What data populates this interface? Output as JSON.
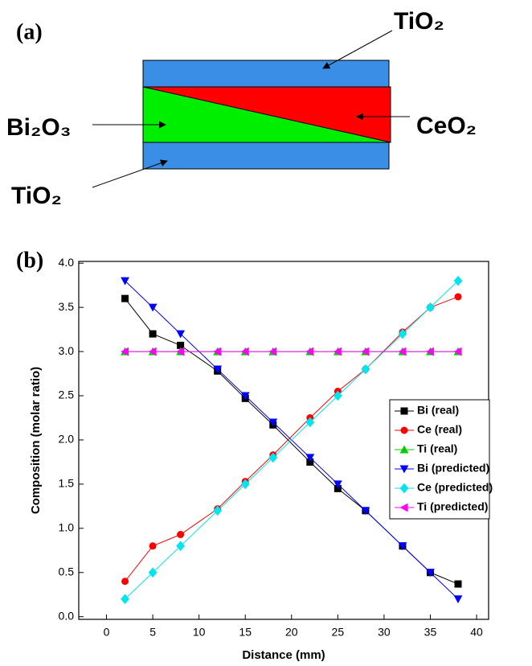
{
  "diagram": {
    "panel_label": "(a)",
    "top_label": "TiO₂",
    "left_label": "Bi₂O₃",
    "right_label": "CeO₂",
    "bottom_label": "TiO₂"
  },
  "chart_data": {
    "type": "line",
    "panel_label": "(b)",
    "x_label": "Distance (mm)",
    "y_label": "Composition (molar ratio)",
    "x": [
      2,
      5,
      8,
      12,
      15,
      18,
      22,
      25,
      28,
      32,
      35,
      38
    ],
    "xlim": [
      -3,
      41.3
    ],
    "xticks": [
      0,
      5,
      10,
      15,
      20,
      25,
      30,
      35,
      40
    ],
    "ylim": [
      -0.03,
      4.02
    ],
    "yticks": [
      {
        "value": 0,
        "label": "0.0"
      },
      0.5,
      {
        "value": 1,
        "label": "1.0"
      },
      1.5,
      {
        "value": 2,
        "label": "2.0"
      },
      2.5,
      {
        "value": 3,
        "label": "3.0"
      },
      3.5,
      {
        "value": 4,
        "label": "4.0"
      }
    ],
    "legend": "right",
    "series": [
      {
        "name": "Bi (real)",
        "color": "#000000",
        "marker": "square",
        "values": [
          3.6,
          3.2,
          3.07,
          2.78,
          2.47,
          2.17,
          1.75,
          1.45,
          1.2,
          0.8,
          0.5,
          0.37
        ]
      },
      {
        "name": "Ce (real)",
        "color": "#ff0000",
        "marker": "circle",
        "values": [
          0.4,
          0.8,
          0.93,
          1.22,
          1.53,
          1.83,
          2.25,
          2.55,
          2.8,
          3.22,
          3.5,
          3.62
        ]
      },
      {
        "name": "Ti (real)",
        "color": "#00cc00",
        "marker": "triangle-up",
        "values": [
          3,
          3,
          3,
          3,
          3,
          3,
          3,
          3,
          3,
          3,
          3,
          3
        ]
      },
      {
        "name": "Bi (predicted)",
        "color": "#0000ff",
        "marker": "triangle-down",
        "values": [
          3.8,
          3.5,
          3.2,
          2.8,
          2.5,
          2.2,
          1.8,
          1.5,
          1.2,
          0.8,
          0.5,
          0.2
        ]
      },
      {
        "name": "Ce (predicted)",
        "color": "#00e5ee",
        "marker": "diamond",
        "values": [
          0.2,
          0.5,
          0.8,
          1.2,
          1.5,
          1.8,
          2.2,
          2.5,
          2.8,
          3.2,
          3.5,
          3.8
        ]
      },
      {
        "name": "Ti (predicted)",
        "color": "#ff00ff",
        "marker": "triangle-left",
        "values": [
          3,
          3,
          3,
          3,
          3,
          3,
          3,
          3,
          3,
          3,
          3,
          3
        ]
      }
    ]
  }
}
